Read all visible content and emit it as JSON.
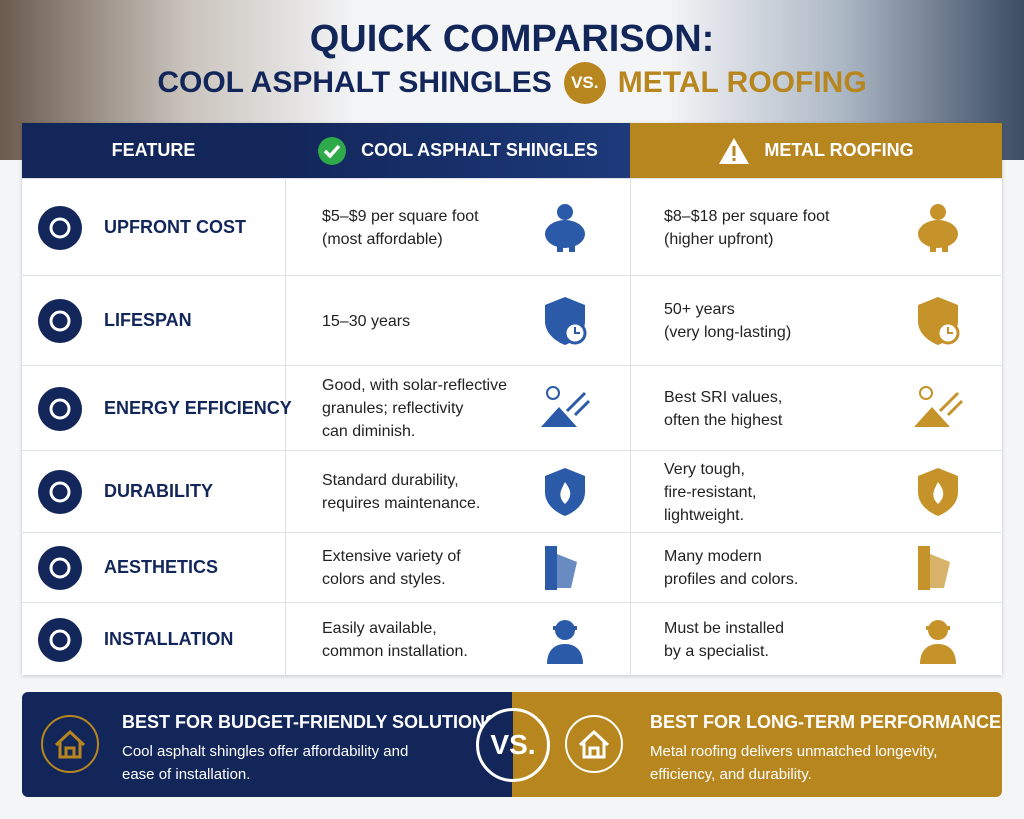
{
  "header": {
    "title": "QUICK COMPARISON:",
    "subtitle_left": "COOL ASPHALT SHINGLES",
    "vs": "VS.",
    "subtitle_right": "METAL ROOFING"
  },
  "table": {
    "columns": [
      "FEATURE",
      "COOL ASPHALT SHINGLES",
      "METAL ROOFING"
    ],
    "rows": [
      {
        "feature": "UPFRONT COST",
        "asphalt": [
          "$5–$9 per square foot",
          "(most affordable)"
        ],
        "metal": [
          "$8–$18 per square foot",
          "(higher upfront)"
        ]
      },
      {
        "feature": "LIFESPAN",
        "asphalt": [
          "15–30 years"
        ],
        "metal": [
          "50+ years",
          "(very long-lasting)"
        ]
      },
      {
        "feature": "ENERGY EFFICIENCY",
        "asphalt": [
          "Good, with solar-reflective",
          "granules; reflectivity",
          "can diminish."
        ],
        "metal": [
          "Best SRI values,",
          "often the highest"
        ]
      },
      {
        "feature": "DURABILITY",
        "asphalt": [
          "Standard durability,",
          "requires maintenance."
        ],
        "metal": [
          "Very tough,",
          "fire-resistant,",
          "lightweight."
        ]
      },
      {
        "feature": "AESTHETICS",
        "asphalt": [
          "Extensive variety of",
          "colors and styles."
        ],
        "metal": [
          "Many modern",
          "profiles and colors."
        ]
      },
      {
        "feature": "INSTALLATION",
        "asphalt": [
          "Easily available,",
          "common installation."
        ],
        "metal": [
          "Must be installed",
          "by a specialist."
        ]
      }
    ]
  },
  "footer": {
    "left": {
      "title": "BEST FOR BUDGET-FRIENDLY SOLUTIONS",
      "text": [
        "Cool asphalt shingles offer affordability and",
        "ease of installation."
      ]
    },
    "vs": "VS.",
    "right": {
      "title": "BEST FOR LONG-TERM PERFORMANCE",
      "text": [
        "Metal roofing delivers unmatched longevity,",
        "efficiency, and durability."
      ]
    }
  }
}
